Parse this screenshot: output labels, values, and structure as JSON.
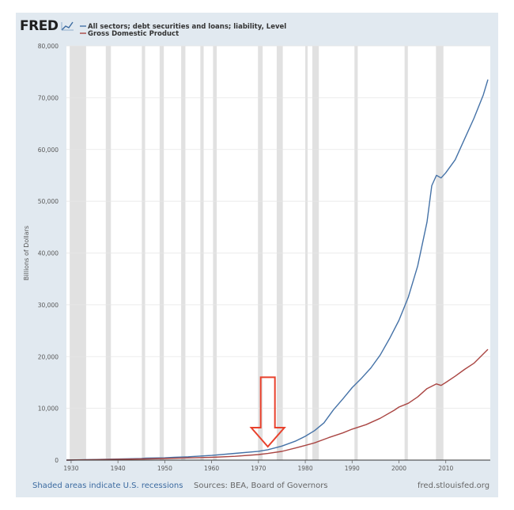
{
  "brand": {
    "name": "FRED"
  },
  "footer": {
    "left": "Shaded areas indicate U.S. recessions",
    "center": "Sources: BEA, Board of Governors",
    "right": "fred.stlouisfed.org"
  },
  "colors": {
    "frame": "#e1e9f0",
    "plot": "#ffffff",
    "recession": "#e1e1e1",
    "series_debt": "#4572a7",
    "series_gdp": "#aa4643",
    "arrow": "#e8412c",
    "footer_link": "#3b6aa0",
    "footer_text": "#666666"
  },
  "annotation": {
    "type": "arrow-down",
    "x": 1972,
    "y_top": 16000,
    "y_tip": 2600
  },
  "chart_data": {
    "type": "line",
    "ylabel": "Billions of Dollars",
    "xlim": [
      1929,
      2019.5
    ],
    "ylim": [
      0,
      80000
    ],
    "xticks": [
      "1930",
      "1940",
      "1950",
      "1960",
      "1970",
      "1980",
      "1990",
      "2000",
      "2010"
    ],
    "yticks": [
      "0",
      "10,000",
      "20,000",
      "30,000",
      "40,000",
      "50,000",
      "60,000",
      "70,000",
      "80,000"
    ],
    "recessions": [
      [
        1929.7,
        1933.2
      ],
      [
        1937.4,
        1938.5
      ],
      [
        1945.1,
        1945.8
      ],
      [
        1948.9,
        1949.8
      ],
      [
        1953.5,
        1954.4
      ],
      [
        1957.6,
        1958.3
      ],
      [
        1960.3,
        1961.1
      ],
      [
        1969.9,
        1970.9
      ],
      [
        1973.9,
        1975.2
      ],
      [
        1980.0,
        1980.5
      ],
      [
        1981.5,
        1982.9
      ],
      [
        1990.5,
        1991.2
      ],
      [
        2001.2,
        2001.9
      ],
      [
        2007.9,
        2009.5
      ]
    ],
    "series": [
      {
        "name": "All sectors; debt securities and loans; liability, Level",
        "x": [
          1945,
          1946,
          1950,
          1952,
          1955,
          1960,
          1965,
          1970,
          1972,
          1975,
          1978,
          1980,
          1982,
          1984,
          1986,
          1988,
          1990,
          1992,
          1994,
          1996,
          1998,
          2000,
          2002,
          2004,
          2006,
          2007,
          2008,
          2009,
          2010,
          2012,
          2014,
          2016,
          2018,
          2019
        ],
        "values": [
          300,
          400,
          450,
          550,
          650,
          900,
          1300,
          1700,
          2000,
          2700,
          3700,
          4600,
          5700,
          7200,
          9700,
          11800,
          14000,
          15800,
          17800,
          20300,
          23500,
          27000,
          31500,
          37500,
          46000,
          53000,
          55000,
          54500,
          55500,
          58000,
          62000,
          66000,
          70500,
          73500
        ]
      },
      {
        "name": "Gross Domestic Product",
        "x": [
          1946,
          1950,
          1955,
          1960,
          1965,
          1970,
          1972,
          1975,
          1978,
          1980,
          1982,
          1985,
          1988,
          1990,
          1993,
          1996,
          1999,
          2000,
          2002,
          2004,
          2006,
          2008,
          2009,
          2010,
          2012,
          2014,
          2016,
          2018,
          2019
        ],
        "values": [
          230,
          300,
          430,
          540,
          740,
          1070,
          1280,
          1690,
          2350,
          2850,
          3340,
          4340,
          5250,
          5980,
          6860,
          8070,
          9630,
          10250,
          10980,
          12210,
          13810,
          14720,
          14420,
          14990,
          16200,
          17520,
          18710,
          20500,
          21400
        ]
      }
    ]
  }
}
